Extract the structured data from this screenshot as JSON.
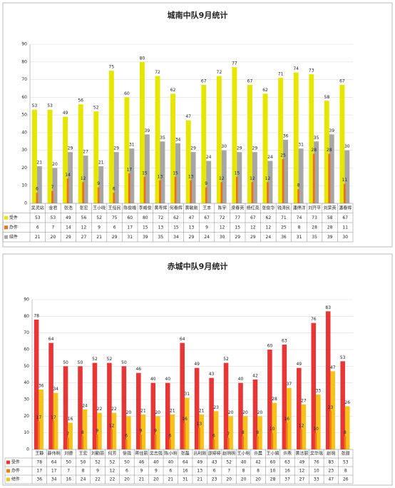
{
  "chart_data": [
    {
      "type": "bar",
      "title": "城南中队9月统计",
      "categories": [
        "吴灵站",
        "金君",
        "张浩",
        "张宏",
        "王小晓",
        "王任民",
        "陈俊峰",
        "李峰俊",
        "黄寿辉",
        "何春辉",
        "黄敏刚",
        "王丰",
        "陈宇",
        "梁春英",
        "杨红亮",
        "张俊华",
        "钱涛民",
        "潘得洋",
        "刘开平",
        "刘荣英",
        "潘春辉"
      ],
      "series": [
        {
          "name": "受件",
          "color": "#e6e600",
          "values": [
            53,
            53,
            49,
            56,
            52,
            75,
            60,
            80,
            72,
            62,
            47,
            67,
            72,
            77,
            67,
            62,
            71,
            74,
            73,
            58,
            67
          ]
        },
        {
          "name": "办件",
          "color": "#e8701e",
          "values": [
            6,
            7,
            14,
            12,
            9,
            6,
            17,
            15,
            13,
            15,
            13,
            9,
            12,
            15,
            12,
            12,
            25,
            8,
            28,
            28,
            11
          ]
        },
        {
          "name": "结件",
          "color": "#a6a6a6",
          "values": [
            21,
            20,
            29,
            27,
            21,
            29,
            31,
            39,
            35,
            34,
            29,
            24,
            30,
            29,
            29,
            24,
            36,
            31,
            35,
            39,
            30
          ]
        }
      ],
      "ylim": [
        0,
        90
      ],
      "yticks": [
        0,
        10,
        20,
        30,
        40,
        50,
        60,
        70,
        80,
        90
      ],
      "grid": true
    },
    {
      "type": "bar",
      "title": "赤城中队9月统计",
      "categories": [
        "王静",
        "薛伟明",
        "刘德",
        "王宏",
        "刘勤丽",
        "何芳",
        "徐强",
        "蒋佳丽",
        "吴志强",
        "陈小明",
        "张磊",
        "吕利刚",
        "邵婷婷",
        "赵明明",
        "王小明",
        "许晨",
        "王小娟",
        "许燕",
        "黄洁丽",
        "吴华瑞",
        "赵明",
        "张甜"
      ],
      "series": [
        {
          "name": "受件",
          "color": "#e83535",
          "values": [
            78,
            64,
            50,
            50,
            52,
            52,
            50,
            46,
            40,
            40,
            64,
            49,
            43,
            52,
            40,
            42,
            60,
            63,
            49,
            76,
            83,
            53
          ]
        },
        {
          "name": "办件",
          "color": "#ee7d14",
          "values": [
            17,
            17,
            7,
            8,
            9,
            12,
            6,
            9,
            9,
            6,
            16,
            13,
            6,
            7,
            8,
            8,
            10,
            16,
            12,
            10,
            23,
            8
          ]
        },
        {
          "name": "结件",
          "color": "#f7c21a",
          "values": [
            36,
            34,
            16,
            24,
            22,
            22,
            20,
            21,
            20,
            21,
            31,
            21,
            23,
            20,
            20,
            20,
            28,
            37,
            27,
            33,
            47,
            26
          ]
        }
      ],
      "ylim": [
        0,
        90
      ],
      "yticks": [
        0,
        10,
        20,
        30,
        40,
        50,
        60,
        70,
        80,
        90
      ],
      "grid": true
    }
  ]
}
